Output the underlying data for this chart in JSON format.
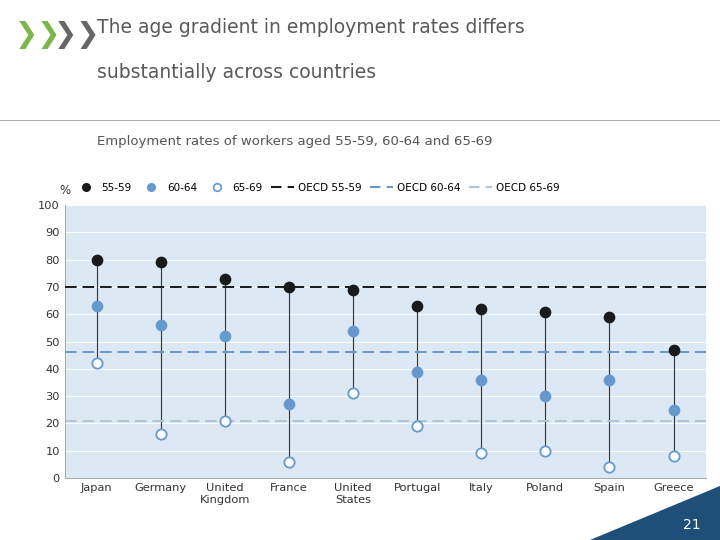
{
  "countries": [
    "Japan",
    "Germany",
    "United\nKingdom",
    "France",
    "United\nStates",
    "Portugal",
    "Italy",
    "Poland",
    "Spain",
    "Greece"
  ],
  "age_55_59": [
    80,
    79,
    73,
    70,
    69,
    63,
    62,
    61,
    59,
    47
  ],
  "age_60_64": [
    63,
    56,
    52,
    27,
    54,
    39,
    36,
    30,
    36,
    25
  ],
  "age_65_69": [
    42,
    16,
    21,
    6,
    31,
    19,
    9,
    10,
    4,
    8
  ],
  "oecd_55_59": 70,
  "oecd_60_64": 46,
  "oecd_65_69": 21,
  "color_55_59": "#1a1a1a",
  "color_60_64": "#6699cc",
  "color_65_69": "#aaccdd",
  "oecd_65_color": "#b0c4d8",
  "bg_color": "#dce9f5",
  "ylim": [
    0,
    100
  ],
  "ylabel": "%",
  "title_line1": "The age gradient in employment rates differs",
  "title_line2": "substantially across countries",
  "subtitle": "Employment rates of workers aged 55-59, 60-64 and 65-69",
  "page_number": "21",
  "logo_green": "#7ab648",
  "logo_gray": "#666666",
  "title_color": "#595959"
}
